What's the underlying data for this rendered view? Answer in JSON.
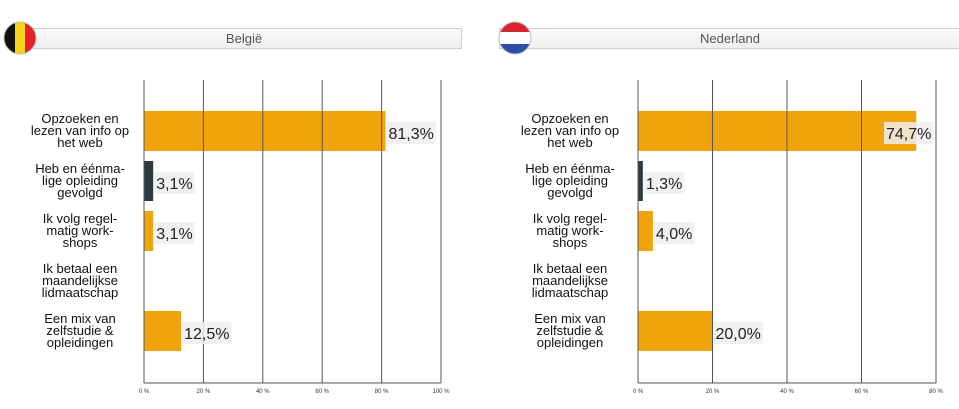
{
  "colors": {
    "primary": "#F0A30A",
    "secondary": "#2D3A42",
    "grid": "#555555",
    "label_bg": "#EEEEEE"
  },
  "chart_data": [
    {
      "type": "bar",
      "orientation": "horizontal",
      "title": "België",
      "flag": "belgium-flag",
      "categories": [
        [
          "Opzoeken en",
          "lezen van info op",
          "het web"
        ],
        [
          "Heb en éénma-",
          "lige opleiding",
          "gevolgd"
        ],
        [
          "Ik volg regel-",
          "matig work-",
          "shops"
        ],
        [
          "Ik betaal een",
          "maandelijkse",
          "lidmaatschap"
        ],
        [
          "Een mix van",
          "zelfstudie &",
          "opleidingen"
        ]
      ],
      "values": [
        81.3,
        3.1,
        3.1,
        null,
        12.5
      ],
      "value_labels": [
        "81,3%",
        "3,1%",
        "3,1%",
        "",
        "12,5%"
      ],
      "bar_colors": [
        "#F0A30A",
        "#2D3A42",
        "#F0A30A",
        "#F0A30A",
        "#F0A30A"
      ],
      "xlim": [
        0,
        100
      ],
      "xticks": [
        0,
        20,
        40,
        60,
        80,
        100
      ],
      "xtick_labels": [
        "0 %",
        "20 %",
        "40 %",
        "60 %",
        "80 %",
        "100 %"
      ],
      "grid": true
    },
    {
      "type": "bar",
      "orientation": "horizontal",
      "title": "Nederland",
      "flag": "netherlands-flag",
      "categories": [
        [
          "Opzoeken en",
          "lezen van info op",
          "het web"
        ],
        [
          "Heb en éénma-",
          "lige opleiding",
          "gevolgd"
        ],
        [
          "Ik volg regel-",
          "matig work-",
          "shops"
        ],
        [
          "Ik betaal een",
          "maandelijkse",
          "lidmaatschap"
        ],
        [
          "Een mix van",
          "zelfstudie &",
          "opleidingen"
        ]
      ],
      "values": [
        74.7,
        1.3,
        4.0,
        null,
        20.0
      ],
      "value_labels": [
        "74,7%",
        "1,3%",
        "4,0%",
        "",
        "20,0%"
      ],
      "bar_colors": [
        "#F0A30A",
        "#2D3A42",
        "#F0A30A",
        "#F0A30A",
        "#F0A30A"
      ],
      "xlim": [
        0,
        80
      ],
      "xticks": [
        0,
        20,
        40,
        60,
        80
      ],
      "xtick_labels": [
        "0 %",
        "20 %",
        "40 %",
        "60 %",
        "80 %"
      ],
      "grid": true
    }
  ]
}
